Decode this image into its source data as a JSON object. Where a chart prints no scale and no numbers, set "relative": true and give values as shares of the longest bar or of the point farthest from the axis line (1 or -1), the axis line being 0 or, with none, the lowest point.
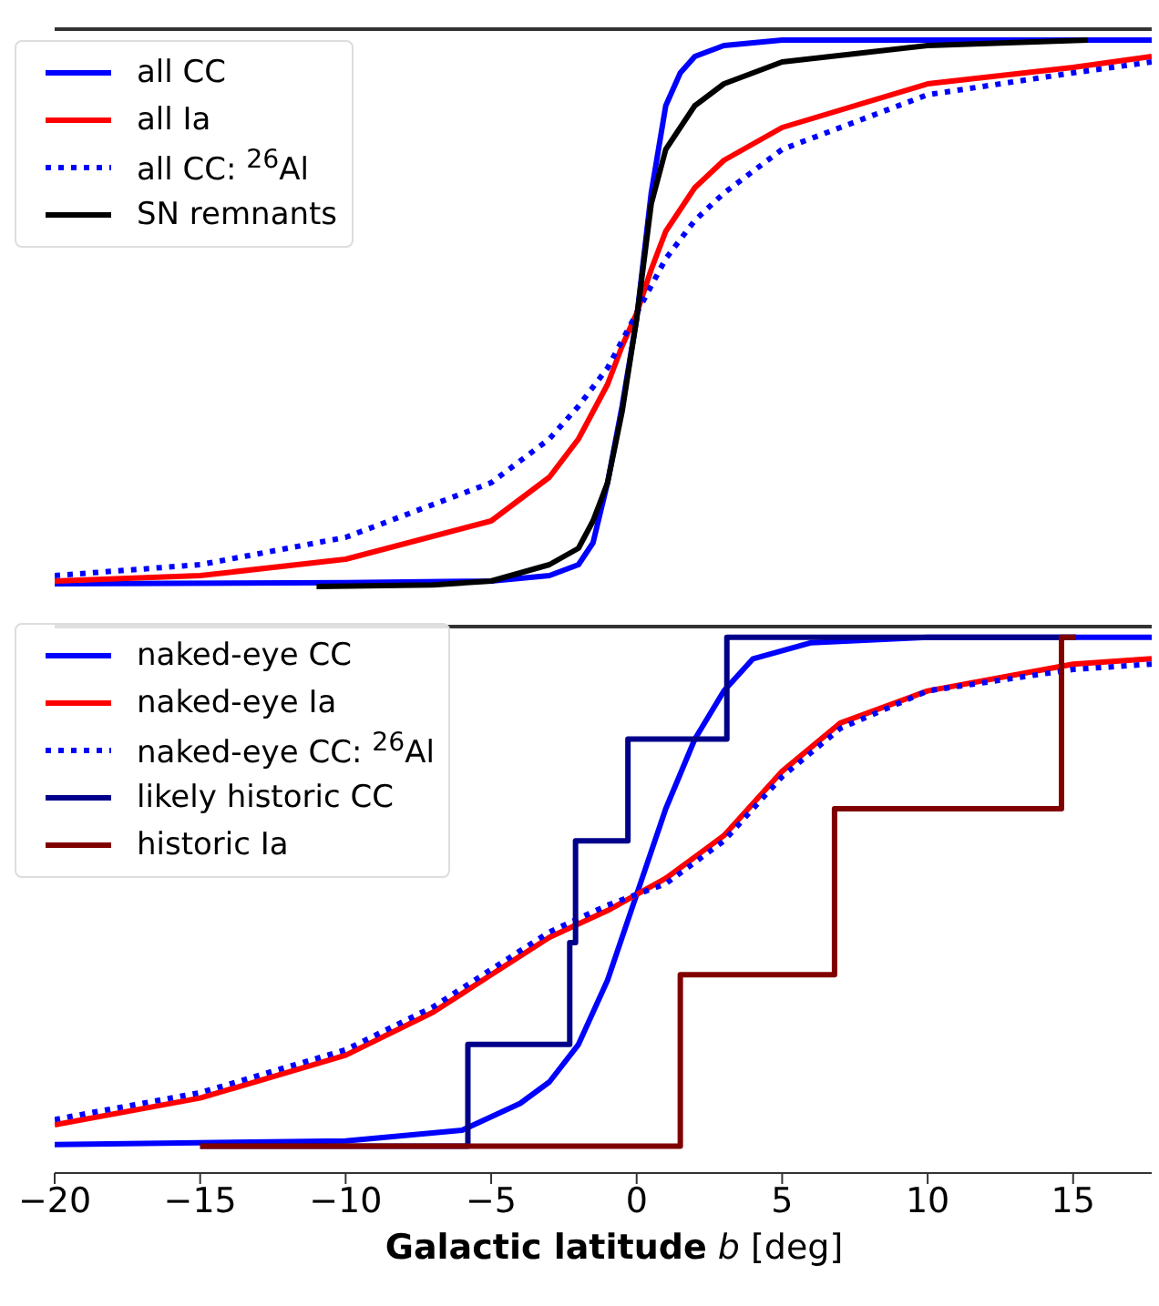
{
  "chart_data": [
    {
      "type": "line",
      "relative": true,
      "xlim": [
        -20,
        17.7
      ],
      "xticks": [
        -20,
        -15,
        -10,
        -5,
        0,
        5,
        10,
        15
      ],
      "tick_labels": false,
      "legend": "top left",
      "series": [
        {
          "name": "all CC",
          "color": "#0000ff",
          "x": [
            -20,
            -10,
            -5,
            -3,
            -2,
            -1.5,
            -1,
            -0.5,
            0,
            0.5,
            1,
            1.5,
            2,
            3,
            5,
            10,
            17.7
          ],
          "values": [
            0.005,
            0.007,
            0.01,
            0.02,
            0.04,
            0.08,
            0.19,
            0.33,
            0.49,
            0.72,
            0.88,
            0.94,
            0.97,
            0.99,
            1,
            1,
            1
          ]
        },
        {
          "name": "all Ia",
          "color": "#ff0000",
          "x": [
            -20,
            -15,
            -10,
            -5,
            -3,
            -2,
            -1,
            -0.5,
            0,
            0.5,
            1,
            2,
            3,
            5,
            10,
            15,
            17.7
          ],
          "values": [
            0.01,
            0.02,
            0.05,
            0.12,
            0.2,
            0.27,
            0.37,
            0.44,
            0.5,
            0.58,
            0.65,
            0.73,
            0.78,
            0.84,
            0.92,
            0.95,
            0.97
          ]
        },
        {
          "name": "all CC: $^{26}$Al",
          "color": "#0000ff",
          "line_style": "dotted",
          "x": [
            -20,
            -15,
            -10,
            -5,
            -3,
            -2,
            -1,
            0,
            1,
            2,
            3,
            5,
            10,
            15,
            17.7
          ],
          "values": [
            0.02,
            0.04,
            0.09,
            0.19,
            0.27,
            0.33,
            0.4,
            0.5,
            0.6,
            0.67,
            0.72,
            0.8,
            0.9,
            0.94,
            0.96
          ]
        },
        {
          "name": "SN remnants",
          "color": "#000000",
          "x": [
            -11,
            -7,
            -5,
            -3,
            -2,
            -1.5,
            -1,
            -0.5,
            0,
            0.5,
            1,
            2,
            3,
            5,
            10,
            15.5
          ],
          "values": [
            0,
            0.003,
            0.01,
            0.04,
            0.07,
            0.12,
            0.19,
            0.32,
            0.49,
            0.7,
            0.8,
            0.88,
            0.92,
            0.96,
            0.99,
            1
          ]
        }
      ]
    },
    {
      "type": "line",
      "relative": true,
      "xlim": [
        -20,
        17.7
      ],
      "xticks": [
        -20,
        -15,
        -10,
        -5,
        0,
        5,
        10,
        15
      ],
      "tick_labels": "x",
      "xlabel": "**Galactic latitude** *b* [deg]",
      "legend": "top left",
      "series": [
        {
          "name": "naked-eye CC",
          "color": "#0000ff",
          "x": [
            -20,
            -10,
            -6,
            -4,
            -3,
            -2,
            -1,
            0,
            1,
            2,
            3,
            4,
            6,
            10,
            17.7
          ],
          "values": [
            0.053,
            0.06,
            0.08,
            0.13,
            0.17,
            0.24,
            0.36,
            0.52,
            0.68,
            0.81,
            0.9,
            0.96,
            0.99,
            1,
            1
          ]
        },
        {
          "name": "naked-eye Ia",
          "color": "#ff0000",
          "x": [
            -20,
            -15,
            -10,
            -7,
            -5,
            -3,
            -1,
            0,
            1,
            3,
            5,
            7,
            10,
            15,
            17.7
          ],
          "values": [
            0.09,
            0.14,
            0.22,
            0.3,
            0.37,
            0.44,
            0.49,
            0.52,
            0.55,
            0.63,
            0.75,
            0.84,
            0.9,
            0.95,
            0.96
          ]
        },
        {
          "name": "naked-eye CC: $^{26}$Al",
          "color": "#0000ff",
          "line_style": "dotted",
          "x": [
            -20,
            -15,
            -10,
            -7,
            -5,
            -3,
            -1,
            0,
            1,
            3,
            5,
            7,
            10,
            15,
            17.7
          ],
          "values": [
            0.1,
            0.15,
            0.23,
            0.31,
            0.38,
            0.45,
            0.5,
            0.52,
            0.54,
            0.62,
            0.74,
            0.83,
            0.9,
            0.94,
            0.95
          ]
        },
        {
          "name": "likely historic CC",
          "color": "#00008b",
          "type": "step",
          "x": [
            -15,
            -5.8,
            -2.3,
            -2.1,
            -0.3,
            3.1,
            15.1
          ],
          "values": [
            0.05,
            0.24,
            0.43,
            0.62,
            0.81,
            1,
            1
          ]
        },
        {
          "name": "historic Ia",
          "color": "#800000",
          "type": "step",
          "x": [
            -15,
            1.5,
            6.8,
            14.6,
            15.1
          ],
          "values": [
            0.05,
            0.37,
            0.68,
            1,
            1
          ]
        }
      ]
    }
  ]
}
